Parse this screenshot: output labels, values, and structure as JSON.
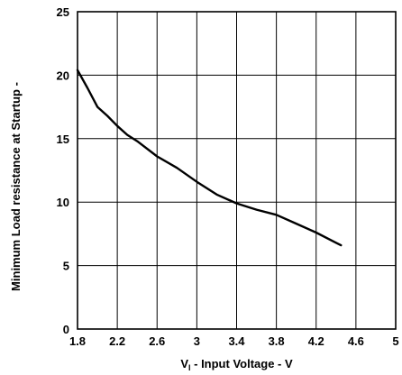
{
  "chart_data": {
    "type": "line",
    "title": "",
    "xlabel": {
      "prefix": "V",
      "subscript": "I",
      "suffix": " - Input Voltage - V"
    },
    "ylabel": "Minimum Load resistance at Startup -",
    "xlim": [
      1.8,
      5
    ],
    "ylim": [
      0,
      25
    ],
    "x_ticks": [
      "1.8",
      "2.2",
      "2.6",
      "3",
      "3.4",
      "3.8",
      "4.2",
      "4.6",
      "5"
    ],
    "y_ticks": [
      "0",
      "5",
      "10",
      "15",
      "20",
      "25"
    ],
    "grid": true,
    "series": [
      {
        "x": [
          1.8,
          1.9,
          2.0,
          2.1,
          2.2,
          2.3,
          2.4,
          2.6,
          2.8,
          3.0,
          3.2,
          3.4,
          3.6,
          3.8,
          4.0,
          4.2,
          4.4,
          4.45
        ],
        "y": [
          20.4,
          19.0,
          17.5,
          16.8,
          16.0,
          15.3,
          14.8,
          13.6,
          12.7,
          11.6,
          10.6,
          9.9,
          9.4,
          9.0,
          8.3,
          7.6,
          6.8,
          6.6
        ]
      }
    ]
  },
  "colors": {
    "line": "#000000",
    "grid": "#000000",
    "background": "#ffffff"
  }
}
